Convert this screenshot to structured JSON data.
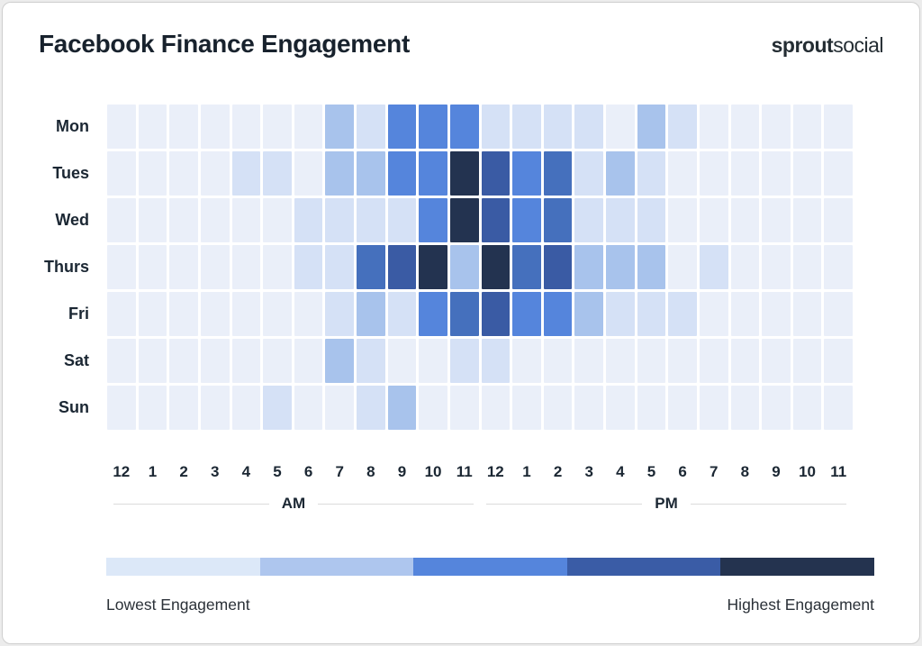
{
  "title": "Facebook Finance Engagement",
  "logo": {
    "bold": "sprout",
    "regular": "social"
  },
  "chart_data": {
    "type": "heatmap",
    "title": "Facebook Finance Engagement",
    "rows": [
      "Mon",
      "Tues",
      "Wed",
      "Thurs",
      "Fri",
      "Sat",
      "Sun"
    ],
    "columns": [
      "12",
      "1",
      "2",
      "3",
      "4",
      "5",
      "6",
      "7",
      "8",
      "9",
      "10",
      "11",
      "12",
      "1",
      "2",
      "3",
      "4",
      "5",
      "6",
      "7",
      "8",
      "9",
      "10",
      "11"
    ],
    "column_groups": [
      {
        "label": "AM",
        "span": 12
      },
      {
        "label": "PM",
        "span": 12
      }
    ],
    "intensity_scale_note": "0 = lowest engagement, 6 = highest engagement",
    "values": [
      [
        0,
        0,
        0,
        0,
        0,
        0,
        0,
        2,
        1,
        3,
        3,
        3,
        1,
        1,
        1,
        1,
        0,
        2,
        1,
        0,
        0,
        0,
        0,
        0
      ],
      [
        0,
        0,
        0,
        0,
        1,
        1,
        0,
        2,
        2,
        3,
        3,
        6,
        5,
        3,
        4,
        1,
        2,
        1,
        0,
        0,
        0,
        0,
        0,
        0
      ],
      [
        0,
        0,
        0,
        0,
        0,
        0,
        1,
        1,
        1,
        1,
        3,
        6,
        5,
        3,
        4,
        1,
        1,
        1,
        0,
        0,
        0,
        0,
        0,
        0
      ],
      [
        0,
        0,
        0,
        0,
        0,
        0,
        1,
        1,
        4,
        5,
        6,
        2,
        6,
        4,
        5,
        2,
        2,
        2,
        0,
        1,
        0,
        0,
        0,
        0
      ],
      [
        0,
        0,
        0,
        0,
        0,
        0,
        0,
        1,
        2,
        1,
        3,
        4,
        5,
        3,
        3,
        2,
        1,
        1,
        1,
        0,
        0,
        0,
        0,
        0
      ],
      [
        0,
        0,
        0,
        0,
        0,
        0,
        0,
        2,
        1,
        0,
        0,
        1,
        1,
        0,
        0,
        0,
        0,
        0,
        0,
        0,
        0,
        0,
        0,
        0
      ],
      [
        0,
        0,
        0,
        0,
        0,
        1,
        0,
        0,
        1,
        2,
        0,
        0,
        0,
        0,
        0,
        0,
        0,
        0,
        0,
        0,
        0,
        0,
        0,
        0
      ]
    ],
    "palette": [
      "#EAEFF9",
      "#D5E1F6",
      "#A8C3EC",
      "#5585DC",
      "#4570BD",
      "#3A5BA4",
      "#233350"
    ],
    "legend": {
      "colors": [
        "#DCE8F8",
        "#AEC6EE",
        "#5585DC",
        "#3A5CA6",
        "#24334F"
      ],
      "low_label": "Lowest Engagement",
      "high_label": "Highest Engagement"
    }
  }
}
